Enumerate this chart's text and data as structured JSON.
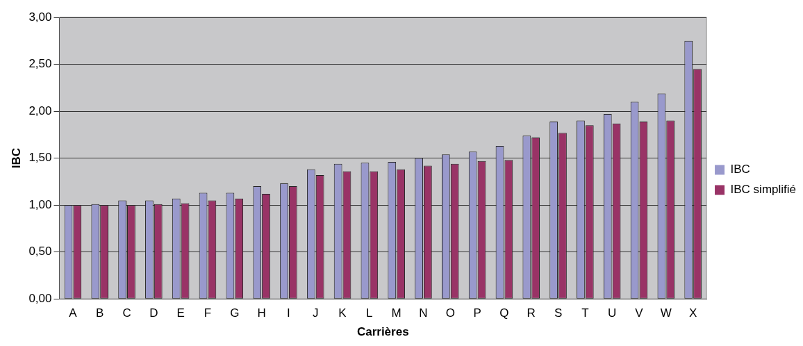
{
  "chart_data": {
    "type": "bar",
    "xlabel": "Carrières",
    "ylabel": "IBC",
    "categories": [
      "A",
      "B",
      "C",
      "D",
      "E",
      "F",
      "G",
      "H",
      "I",
      "J",
      "K",
      "L",
      "M",
      "N",
      "O",
      "P",
      "Q",
      "R",
      "S",
      "T",
      "U",
      "V",
      "W",
      "X"
    ],
    "series": [
      {
        "name": "IBC",
        "color": "#9999cc",
        "values": [
          1.0,
          1.01,
          1.05,
          1.05,
          1.07,
          1.13,
          1.13,
          1.2,
          1.23,
          1.38,
          1.44,
          1.45,
          1.46,
          1.5,
          1.54,
          1.57,
          1.63,
          1.74,
          1.89,
          1.9,
          1.97,
          2.1,
          2.19,
          2.75
        ]
      },
      {
        "name": "IBC simplifié",
        "color": "#993366",
        "values": [
          1.0,
          1.0,
          1.0,
          1.01,
          1.02,
          1.05,
          1.07,
          1.12,
          1.2,
          1.32,
          1.36,
          1.36,
          1.38,
          1.42,
          1.44,
          1.47,
          1.48,
          1.72,
          1.77,
          1.85,
          1.87,
          1.89,
          1.9,
          2.45
        ]
      }
    ],
    "ylim": [
      0,
      3
    ],
    "yticks": [
      {
        "value": 0,
        "label": "0,00"
      },
      {
        "value": 0.5,
        "label": "0,50"
      },
      {
        "value": 1,
        "label": "1,00"
      },
      {
        "value": 1.5,
        "label": "1,50"
      },
      {
        "value": 2,
        "label": "2,00"
      },
      {
        "value": 2.5,
        "label": "2,50"
      },
      {
        "value": 3,
        "label": "3,00"
      }
    ],
    "grid": "y",
    "legend": "right"
  }
}
